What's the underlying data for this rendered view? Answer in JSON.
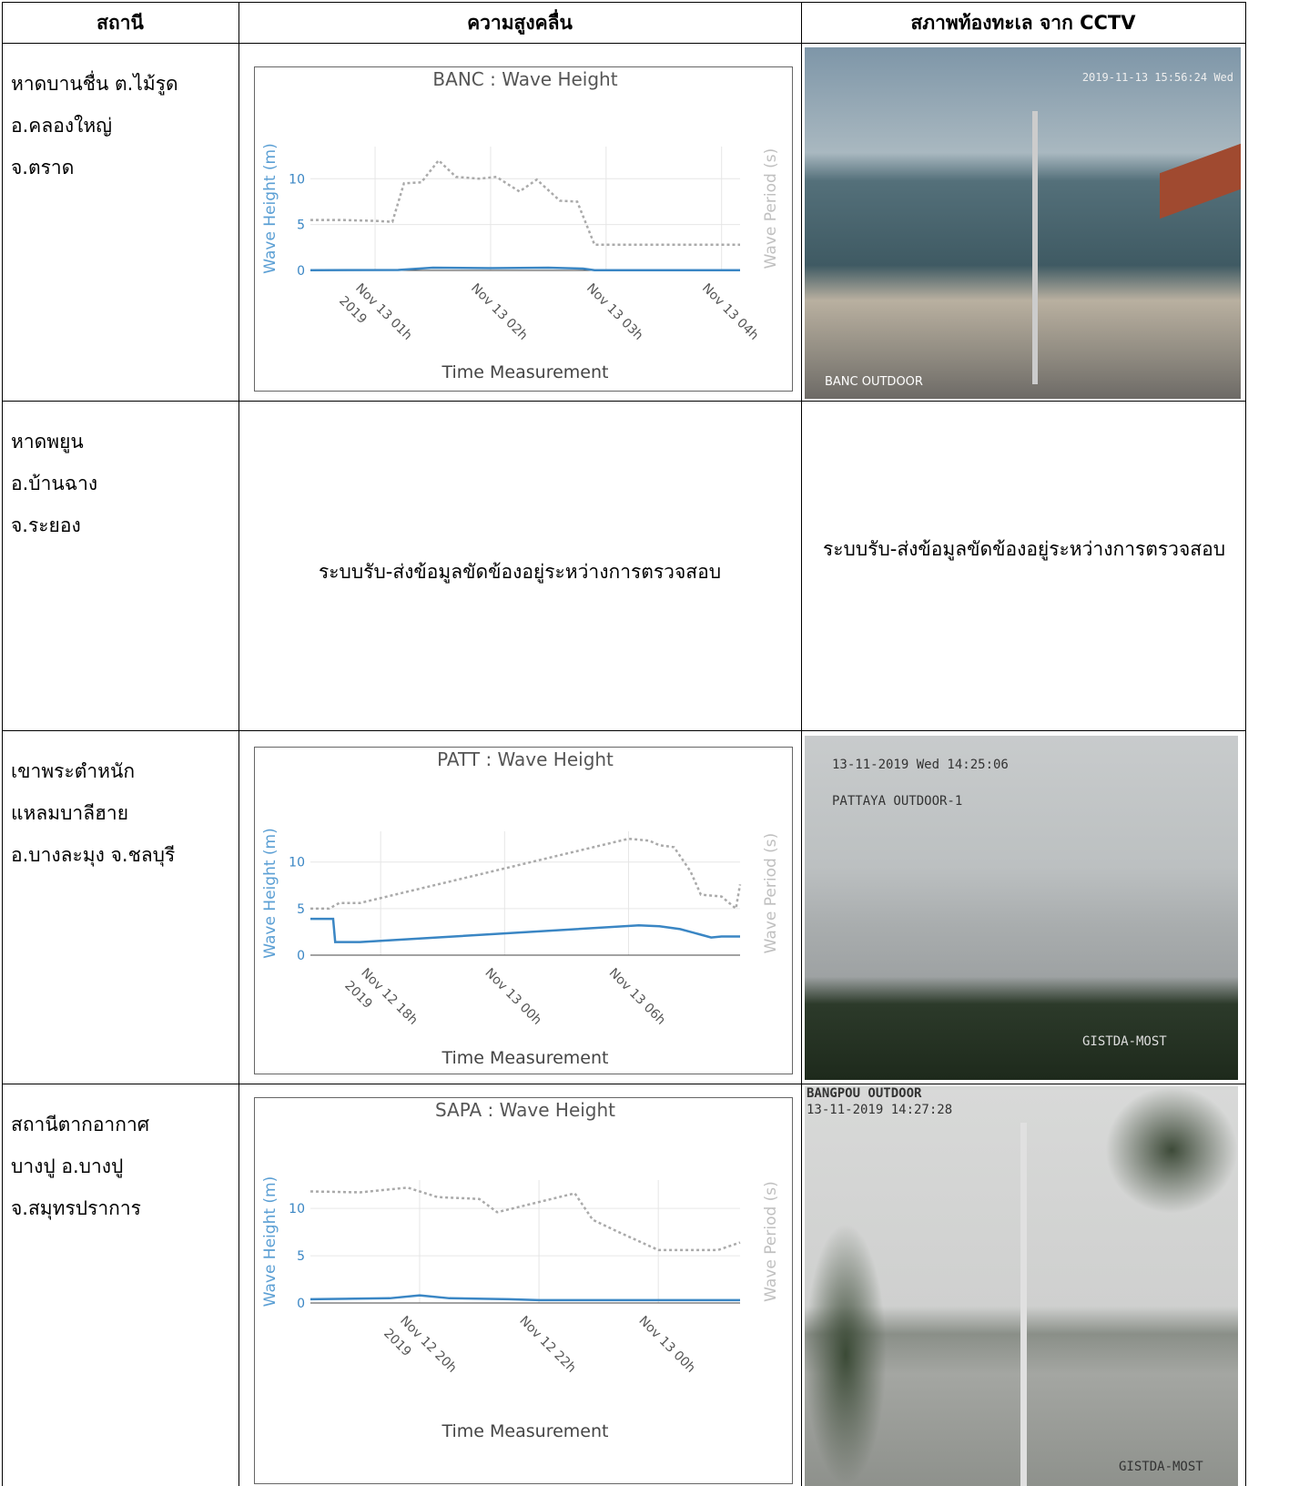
{
  "table": {
    "headers": [
      "สถานี",
      "ความสูงคลื่น",
      "สภาพท้องทะเล จาก CCTV"
    ],
    "rows": [
      {
        "station": [
          "หาดบานชื่น ต.ไม้รูด",
          "อ.คลองใหญ่",
          "จ.ตราด"
        ],
        "cctv": {
          "texts": [
            "2019-11-13 15:56:24 Wed",
            "BANC OUTDOOR"
          ]
        }
      },
      {
        "station": [
          "หาดพยูน",
          "อ.บ้านฉาง",
          "จ.ระยอง"
        ],
        "chart_status": "ระบบรับ-ส่งข้อมูลขัดข้องอยู่ระหว่างการตรวจสอบ",
        "cctv_status": "ระบบรับ-ส่งข้อมูลขัดข้องอยู่ระหว่างการตรวจสอบ"
      },
      {
        "station": [
          "เขาพระตำหนัก",
          "แหลมบาลีฮาย",
          "อ.บางละมุง จ.ชลบุรี"
        ],
        "cctv": {
          "texts": [
            "13-11-2019 Wed 14:25:06",
            "PATTAYA OUTDOOR-1",
            "GISTDA-MOST"
          ]
        }
      },
      {
        "station": [
          "สถานีตากอากาศ",
          "บางปู อ.บางปู",
          "จ.สมุทรปราการ"
        ],
        "cctv": {
          "texts": [
            "BANGPOU OUTDOOR",
            "13-11-2019 14:27:28",
            "GISTDA-MOST"
          ]
        }
      }
    ]
  },
  "chart_data": [
    {
      "type": "line",
      "title": "BANC : Wave Height",
      "y_label": "Wave Height (m)",
      "y2_label": "Wave Period (s)",
      "x_label": "Time Measurement",
      "xlim": [
        0.44,
        4.16
      ],
      "xticks": [
        {
          "value": 1,
          "label": "Nov 13 01h",
          "sublabel": "2019"
        },
        {
          "value": 2,
          "label": "Nov 13 02h"
        },
        {
          "value": 3,
          "label": "Nov 13 03h"
        },
        {
          "value": 4,
          "label": "Nov 13 04h"
        }
      ],
      "ylim": [
        0,
        13.5
      ],
      "yticks": [
        0,
        5,
        10
      ],
      "y2lim": [
        0,
        13.5
      ],
      "grid": true,
      "series": [
        {
          "color": "#3a86c4",
          "x": [
            0.44,
            1.2,
            1.5,
            2.0,
            2.5,
            2.8,
            2.9,
            4.16
          ],
          "values": [
            0.02,
            0.05,
            0.3,
            0.25,
            0.3,
            0.2,
            0.02,
            0.02
          ]
        },
        {
          "color": "#aaaaaa",
          "dashed": true,
          "axis": "y2",
          "x": [
            0.44,
            0.7,
            1.0,
            1.15,
            1.25,
            1.4,
            1.55,
            1.7,
            1.9,
            2.05,
            2.25,
            2.4,
            2.6,
            2.75,
            2.9,
            3.2,
            4.16
          ],
          "values": [
            5.5,
            5.5,
            5.4,
            5.3,
            9.5,
            9.6,
            12.0,
            10.2,
            10.0,
            10.2,
            8.6,
            9.9,
            7.6,
            7.5,
            2.8,
            2.8,
            2.8
          ]
        }
      ]
    },
    {
      "type": "line",
      "title": "PATT : Wave Height",
      "y_label": "Wave Height (m)",
      "y2_label": "Wave Period (s)",
      "x_label": "Time Measurement",
      "xlim": [
        14.6,
        35.4
      ],
      "xticks": [
        {
          "value": 18,
          "label": "Nov 12 18h",
          "sublabel": "2019"
        },
        {
          "value": 24,
          "label": "Nov 13 00h"
        },
        {
          "value": 30,
          "label": "Nov 13 06h"
        }
      ],
      "ylim": [
        0,
        13.3
      ],
      "yticks": [
        0,
        5,
        10
      ],
      "y2lim": [
        0,
        13.3
      ],
      "grid": true,
      "series": [
        {
          "color": "#3a86c4",
          "x": [
            14.6,
            15.7,
            15.8,
            17,
            30.5,
            31.5,
            32.5,
            33.5,
            34,
            34.5,
            35.4
          ],
          "values": [
            3.9,
            3.9,
            1.4,
            1.4,
            3.2,
            3.1,
            2.8,
            2.2,
            1.9,
            2.0,
            2.0
          ]
        },
        {
          "color": "#aaaaaa",
          "dashed": true,
          "axis": "y2",
          "x": [
            14.6,
            15.5,
            16,
            17,
            30,
            31,
            31.5,
            32.2,
            33,
            33.5,
            34.5,
            35.2,
            35.4
          ],
          "values": [
            5.0,
            5.0,
            5.6,
            5.6,
            12.5,
            12.3,
            11.8,
            11.6,
            9,
            6.5,
            6.3,
            5.0,
            7.6
          ]
        }
      ]
    },
    {
      "type": "line",
      "title": "SAPA : Wave Height",
      "y_label": "Wave Height (m)",
      "y2_label": "Wave Period (s)",
      "x_label": "Time Measurement",
      "xlim": [
        18.17,
        25.37
      ],
      "xticks": [
        {
          "value": 20,
          "label": "Nov 12 20h",
          "sublabel": "2019"
        },
        {
          "value": 22,
          "label": "Nov 12 22h"
        },
        {
          "value": 24,
          "label": "Nov 13 00h"
        }
      ],
      "ylim": [
        0,
        13
      ],
      "yticks": [
        0,
        5,
        10
      ],
      "y2lim": [
        0,
        13
      ],
      "grid": true,
      "series": [
        {
          "color": "#3a86c4",
          "x": [
            18.17,
            19.5,
            20,
            20.5,
            21.5,
            22,
            25.37
          ],
          "values": [
            0.4,
            0.5,
            0.8,
            0.5,
            0.4,
            0.3,
            0.3
          ]
        },
        {
          "color": "#aaaaaa",
          "dashed": true,
          "axis": "y2",
          "x": [
            18.17,
            19,
            19.8,
            20.3,
            21,
            21.3,
            22.6,
            22.9,
            23.3,
            24,
            25,
            25.37
          ],
          "values": [
            11.8,
            11.7,
            12.2,
            11.2,
            11.0,
            9.6,
            11.6,
            8.8,
            7.6,
            5.6,
            5.6,
            6.4
          ]
        }
      ]
    }
  ]
}
